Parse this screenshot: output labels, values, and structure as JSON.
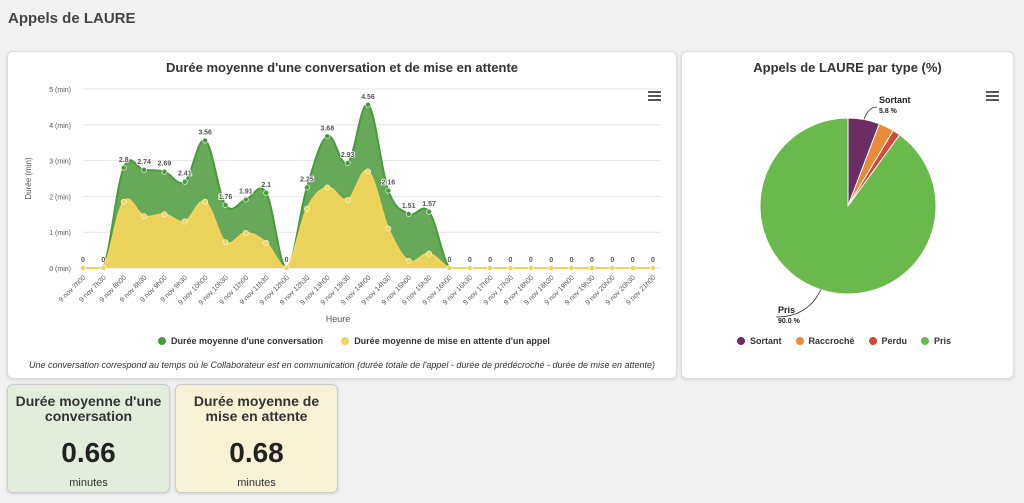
{
  "page": {
    "title": "Appels de LAURE"
  },
  "line_card": {
    "title": "Durée moyenne d'une conversation et de mise en attente",
    "footnote": "Une conversation correspond au temps où le Collaborateur est en communication (durée totale de l'appel - durée de prédécroché - durée de mise en attente)"
  },
  "pie_card": {
    "title": "Appels de LAURE par type (%)"
  },
  "kpis": [
    {
      "title": "Durée moyenne d'une conversation",
      "value": "0.66",
      "unit": "minutes",
      "color": "#e2eedb"
    },
    {
      "title": "Durée moyenne de mise en attente",
      "value": "0.68",
      "unit": "minutes",
      "color": "#f7f1d6"
    }
  ],
  "chart_data": [
    {
      "type": "area",
      "title": "Durée moyenne d'une conversation et de mise en attente",
      "xlabel": "Heure",
      "ylabel": "Durée (min)",
      "ylim": [
        0,
        5
      ],
      "yticks": [
        "0 (min)",
        "1 (min)",
        "2 (min)",
        "3 (min)",
        "4 (min)",
        "5 (min)"
      ],
      "categories": [
        "9 nov 7h00",
        "9 nov 7h30",
        "9 nov 8h00",
        "9 nov 8h30",
        "9 nov 9h00",
        "9 nov 9h30",
        "9 nov 10h00",
        "9 nov 10h30",
        "9 nov 11h00",
        "9 nov 11h30",
        "9 nov 12h00",
        "9 nov 12h30",
        "9 nov 13h00",
        "9 nov 13h30",
        "9 nov 14h00",
        "9 nov 14h30",
        "9 nov 15h00",
        "9 nov 15h30",
        "9 nov 16h00",
        "9 nov 16h30",
        "9 nov 17h00",
        "9 nov 17h30",
        "9 nov 18h00",
        "9 nov 18h30",
        "9 nov 19h00",
        "9 nov 19h30",
        "9 nov 20h00",
        "9 nov 20h30",
        "9 nov 21h00"
      ],
      "series": [
        {
          "name": "Durée moyenne d'une conversation",
          "color": "#4a9a3c",
          "values": [
            0,
            0,
            2.8,
            2.74,
            2.69,
            2.41,
            3.56,
            1.76,
            1.91,
            2.1,
            0,
            2.25,
            3.68,
            2.93,
            4.56,
            2.16,
            1.51,
            1.57,
            0,
            0,
            0,
            0,
            0,
            0,
            0,
            0,
            0,
            0,
            0
          ]
        },
        {
          "name": "Durée moyenne de mise en attente d'un appel",
          "color": "#f2d45c",
          "values": [
            0,
            0,
            1.85,
            1.45,
            1.5,
            1.3,
            1.85,
            0.72,
            0.98,
            0.7,
            0,
            1.65,
            2.25,
            1.9,
            2.7,
            1.1,
            0.2,
            0.4,
            0,
            0,
            0,
            0,
            0,
            0,
            0,
            0,
            0,
            0,
            0
          ]
        }
      ],
      "data_labels": [
        "0",
        "0",
        "2.8",
        "2.74",
        "2.69",
        "2.41",
        "3.56",
        "1.76",
        "1.91",
        "2.1",
        "0",
        "2.25",
        "3.68",
        "2.93",
        "4.56",
        "2.16",
        "1.51",
        "1.57",
        "0",
        "0",
        "0",
        "0",
        "0",
        "0",
        "0",
        "0",
        "0",
        "0",
        "0"
      ],
      "legend": "bottom",
      "grid": true
    },
    {
      "type": "pie",
      "title": "Appels de LAURE par type (%)",
      "slices": [
        {
          "name": "Sortant",
          "value": 5.8,
          "color": "#6b2d63",
          "label": "Sortant",
          "pct": "5.8 %"
        },
        {
          "name": "Raccroché",
          "value": 2.8,
          "color": "#e88c3a",
          "label": "",
          "pct": ""
        },
        {
          "name": "Perdu",
          "value": 1.4,
          "color": "#d04a3a",
          "label": "",
          "pct": ""
        },
        {
          "name": "Pris",
          "value": 90.0,
          "color": "#69b94d",
          "label": "Pris",
          "pct": "90.0 %"
        }
      ],
      "legend": "bottom"
    }
  ]
}
